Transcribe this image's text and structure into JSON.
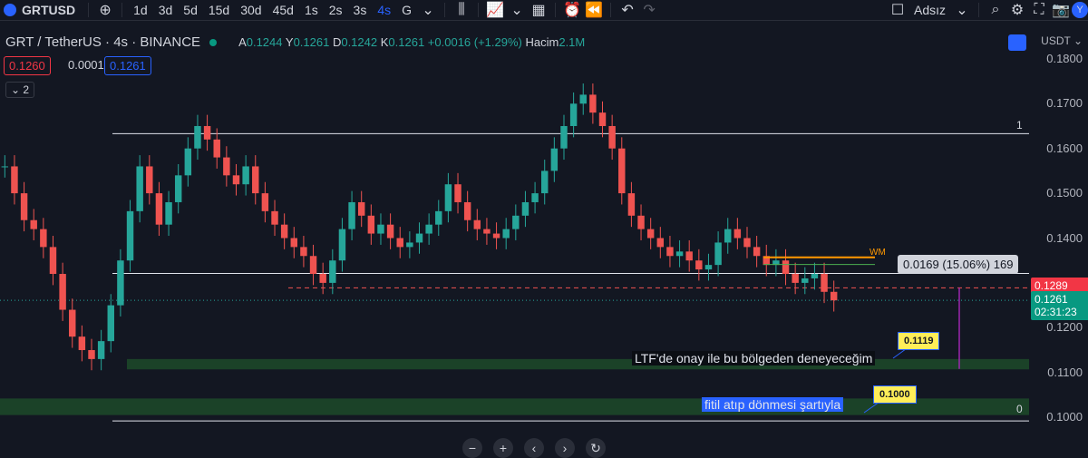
{
  "toolbar": {
    "symbol": "GRTUSD",
    "intervals": [
      "1d",
      "3d",
      "5d",
      "15d",
      "30d",
      "45d",
      "1s",
      "2s",
      "3s",
      "4s",
      "G"
    ],
    "active_interval": "4s",
    "layout_name": "Adsız"
  },
  "legend": {
    "title": "GRT / TetherUS · 4s · BINANCE",
    "open_label": "A",
    "open": "0.1244",
    "high_label": "Y",
    "high": "0.1261",
    "low_label": "D",
    "low": "0.1242",
    "close_label": "K",
    "close": "0.1261",
    "change": "+0.0016 (+1.29%)",
    "volume_label": "Hacim",
    "volume": "2.1M",
    "bid": "0.1260",
    "spread": "0.0001",
    "ask": "0.1261",
    "indicators_count": "2"
  },
  "price_axis": {
    "currency": "USDT",
    "ticks": [
      "0.1800",
      "0.1700",
      "0.1600",
      "0.1500",
      "0.1400",
      "0.1300",
      "0.1200",
      "0.1100",
      "0.1000"
    ],
    "marker_level": "0.1289",
    "current_price": "0.1261",
    "countdown": "02:31:23"
  },
  "annotations": {
    "measure": "0.0169 (15.06%) 169",
    "note1": "LTF'de onay ile bu bölgeden deneyeceğim",
    "note2": "fitil atıp dönmesi şartıyla",
    "callout1": "0.1119",
    "callout2": "0.1000",
    "line_label_top": "1",
    "line_label_bottom": "0",
    "wm_label": "WM"
  },
  "colors": {
    "background": "#131722",
    "up": "#26a69a",
    "down": "#ef5350",
    "accent": "#2962ff",
    "zone": "#1e4d2b"
  },
  "chart_data": {
    "type": "candlestick",
    "ylim": [
      0.098,
      0.182
    ],
    "horizontal_lines": [
      0.1633,
      0.1321,
      0.0992
    ],
    "zones": [
      [
        0.1107,
        0.113
      ],
      [
        0.1005,
        0.1042
      ]
    ],
    "dashed_level": 0.1289,
    "close_series": [
      0.156,
      0.15,
      0.144,
      0.142,
      0.138,
      0.132,
      0.124,
      0.118,
      0.115,
      0.113,
      0.117,
      0.125,
      0.135,
      0.146,
      0.156,
      0.15,
      0.143,
      0.148,
      0.154,
      0.16,
      0.165,
      0.162,
      0.158,
      0.154,
      0.152,
      0.156,
      0.15,
      0.146,
      0.143,
      0.14,
      0.138,
      0.136,
      0.132,
      0.13,
      0.135,
      0.142,
      0.148,
      0.145,
      0.141,
      0.143,
      0.14,
      0.138,
      0.139,
      0.141,
      0.143,
      0.146,
      0.152,
      0.148,
      0.144,
      0.142,
      0.141,
      0.14,
      0.142,
      0.145,
      0.148,
      0.15,
      0.155,
      0.16,
      0.165,
      0.17,
      0.172,
      0.168,
      0.165,
      0.16,
      0.15,
      0.145,
      0.142,
      0.14,
      0.138,
      0.136,
      0.137,
      0.135,
      0.133,
      0.134,
      0.139,
      0.142,
      0.14,
      0.138,
      0.136,
      0.134,
      0.135,
      0.132,
      0.13,
      0.131,
      0.132,
      0.128,
      0.1261
    ]
  }
}
